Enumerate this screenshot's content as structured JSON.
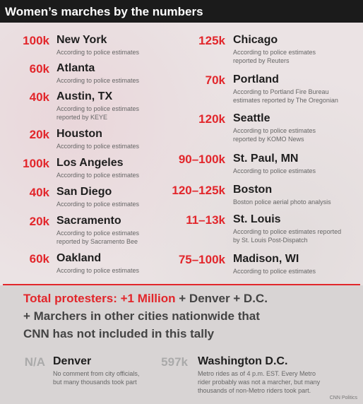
{
  "header": {
    "title": "Women’s marches by the numbers"
  },
  "left": [
    {
      "count": "100k",
      "city": "New York",
      "note": [
        "According to police estimates"
      ]
    },
    {
      "count": "60k",
      "city": "Atlanta",
      "note": [
        "According to police estimates"
      ]
    },
    {
      "count": "40k",
      "city": "Austin, TX",
      "note": [
        "According to police estimates",
        "reported by KEYE"
      ]
    },
    {
      "count": "20k",
      "city": "Houston",
      "note": [
        "According to police estimates"
      ]
    },
    {
      "count": "100k",
      "city": "Los Angeles",
      "note": [
        "According to police estimates"
      ]
    },
    {
      "count": "40k",
      "city": "San Diego",
      "note": [
        "According to police estimates"
      ]
    },
    {
      "count": "20k",
      "city": "Sacramento",
      "note": [
        "According to police estimates",
        "reported by Sacramento Bee"
      ]
    },
    {
      "count": "60k",
      "city": "Oakland",
      "note": [
        "According to police estimates"
      ]
    }
  ],
  "right": [
    {
      "count": "125k",
      "city": "Chicago",
      "note": [
        "According to police estimates",
        "reported by Reuters"
      ]
    },
    {
      "count": "70k",
      "city": "Portland",
      "note": [
        "According to Portland Fire Bureau",
        "estimates reported by The Oregonian"
      ]
    },
    {
      "count": "120k",
      "city": "Seattle",
      "note": [
        "According to police estimates",
        "reported by KOMO News"
      ]
    },
    {
      "count": "90–100k",
      "city": "St. Paul, MN",
      "note": [
        "According to police estimates"
      ]
    },
    {
      "count": "120–125k",
      "city": "Boston",
      "note": [
        "Boston police aerial photo analysis"
      ]
    },
    {
      "count": "11–13k",
      "city": "St. Louis",
      "note": [
        "According to police estimates reported",
        "by St. Louis Post-Dispatch"
      ]
    },
    {
      "count": "75–100k",
      "city": "Madison, WI",
      "note": [
        "According to police estimates"
      ]
    }
  ],
  "total": {
    "highlight": "Total protesters: +1 Million",
    "rest": "+ Denver + D.C.",
    "lines": [
      "+ Marchers in other cities nationwide that",
      "CNN has not included in this tally"
    ]
  },
  "extra": [
    {
      "count": "N/A",
      "city": "Denver",
      "note": [
        "No comment from city officials,",
        "but many thousands took part"
      ]
    },
    {
      "count": "597k",
      "city": "Washington D.C.",
      "note": [
        "Metro rides as of 4 p.m. EST. Every Metro",
        "rider probably was not a marcher, but many",
        "thousands of non-Metro riders took part."
      ]
    }
  ],
  "credit": "CNN Politics"
}
